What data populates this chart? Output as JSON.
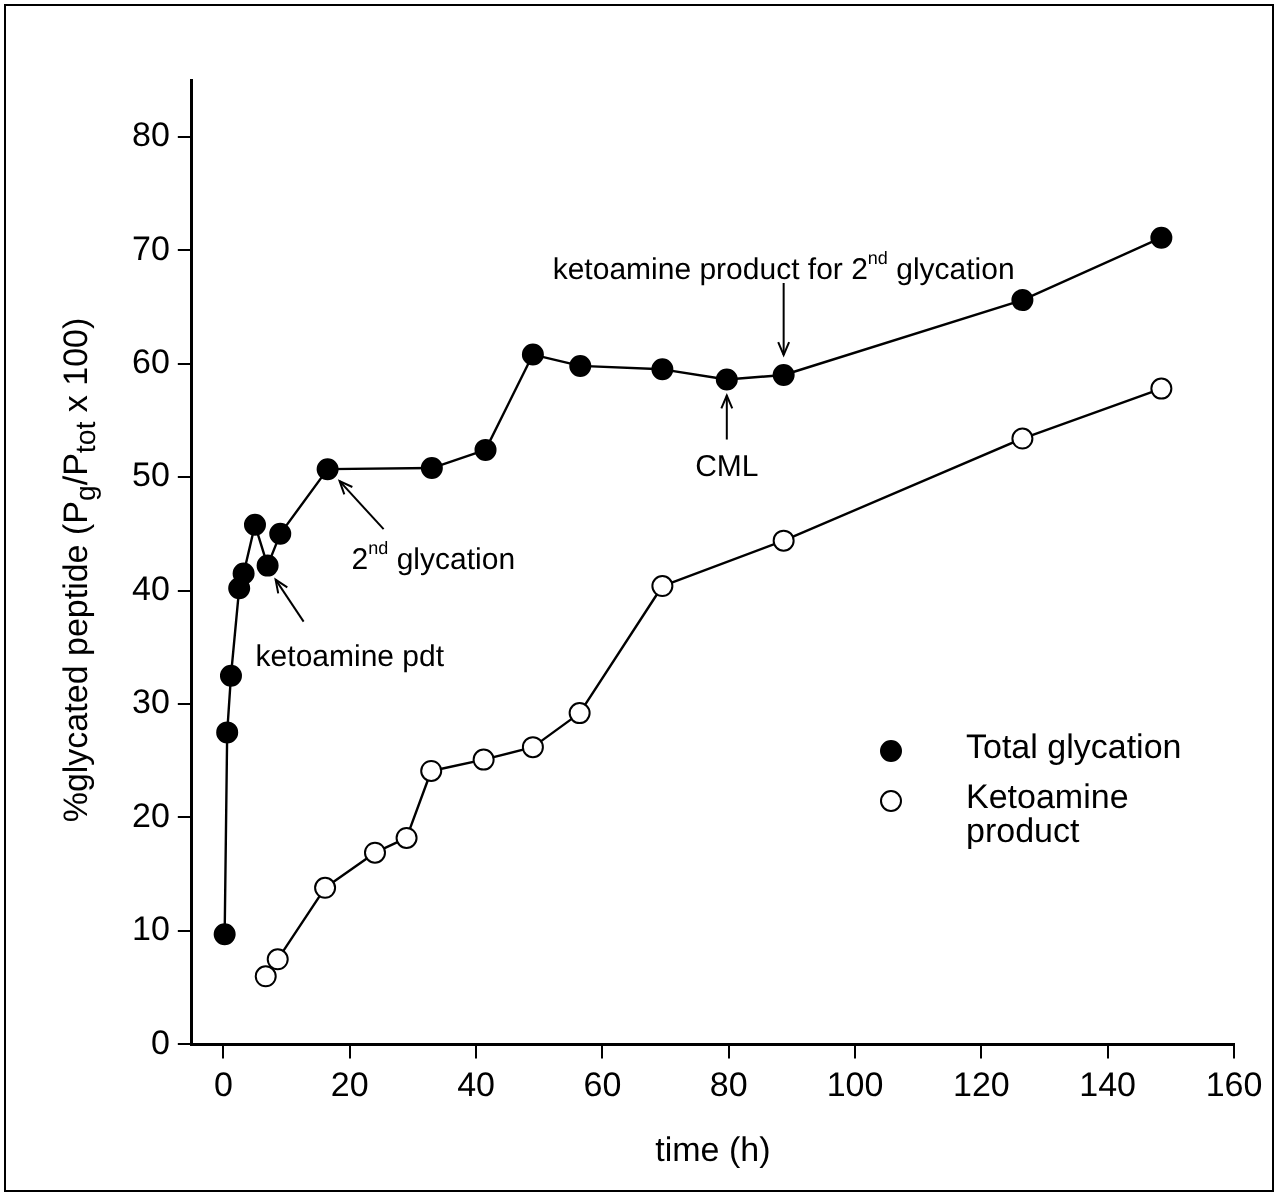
{
  "chart_data": {
    "type": "line",
    "xlabel": "time (h)",
    "ylabel": "%glycated peptide (P$_{g}$/P$_{tot}$ x 100)",
    "xlim": [
      -5,
      160
    ],
    "xticks": [
      0,
      20,
      40,
      60,
      80,
      100,
      120,
      140,
      160
    ],
    "ylim": [
      0,
      85
    ],
    "yticks": [
      0,
      10,
      20,
      30,
      40,
      50,
      60,
      70,
      80
    ],
    "grid": false,
    "legend": "right",
    "line_style": "solid",
    "series": [
      {
        "name": "Total glycation",
        "color": "#000000",
        "marker": "circle",
        "x": [
          0.2,
          0.6,
          1.2,
          2.5,
          3.2,
          5,
          7,
          9,
          16.5,
          33,
          41.5,
          49,
          56.5,
          69.5,
          79.7,
          88.7,
          126.5,
          148.5
        ],
        "values": [
          9.7,
          27.5,
          32.5,
          40.2,
          41.5,
          45.8,
          42.2,
          45,
          50.7,
          50.8,
          52.4,
          60.8,
          59.8,
          59.5,
          58.6,
          59.0,
          65.6,
          71.1
        ]
      },
      {
        "name": "Ketoamine product",
        "color": "#ffffff",
        "marker": "circle",
        "x": [
          6.7,
          8.6,
          16.1,
          24,
          29,
          32.9,
          41.2,
          49,
          56.4,
          69.5,
          88.7,
          126.5,
          148.5
        ],
        "values": [
          6.0,
          7.5,
          13.8,
          16.9,
          18.2,
          24.1,
          25.1,
          26.2,
          29.2,
          40.4,
          44.4,
          53.4,
          57.8
        ]
      }
    ],
    "annotations": [
      {
        "text": "ketoamine product for 2$^{nd}$ glycation",
        "x": 88.7,
        "y": 59.0
      },
      {
        "text": "CML",
        "x": 79.7,
        "y": 58.6
      },
      {
        "text": "2$^{nd}$ glycation",
        "x": 16.5,
        "y": 50.7
      },
      {
        "text": "ketoamine pdt",
        "x": 7,
        "y": 42.2
      }
    ]
  }
}
